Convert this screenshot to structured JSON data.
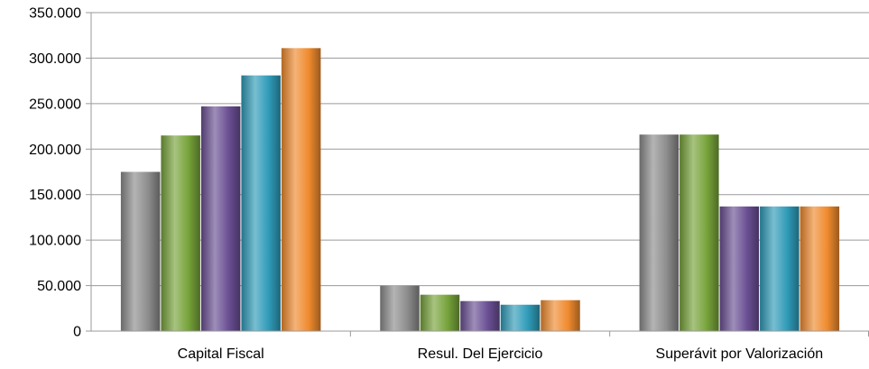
{
  "chart_data": {
    "type": "bar",
    "categories": [
      "Capital Fiscal",
      "Resul. Del Ejercicio",
      "Superávit por Valorización"
    ],
    "series": [
      {
        "values": [
          175000,
          50000,
          216000
        ],
        "color": "#8c8c8c"
      },
      {
        "values": [
          215000,
          40000,
          216000
        ],
        "color": "#77a33a"
      },
      {
        "values": [
          247000,
          33000,
          137000
        ],
        "color": "#6a4f93"
      },
      {
        "values": [
          281000,
          29000,
          137000
        ],
        "color": "#2f9bb8"
      },
      {
        "values": [
          311000,
          34000,
          137000
        ],
        "color": "#ef8a2e"
      }
    ],
    "y_ticks": [
      "0",
      "50.000",
      "100.000",
      "150.000",
      "200.000",
      "250.000",
      "300.000",
      "350.000"
    ],
    "ylim": [
      0,
      350000
    ],
    "grid": true,
    "legend": "none"
  }
}
